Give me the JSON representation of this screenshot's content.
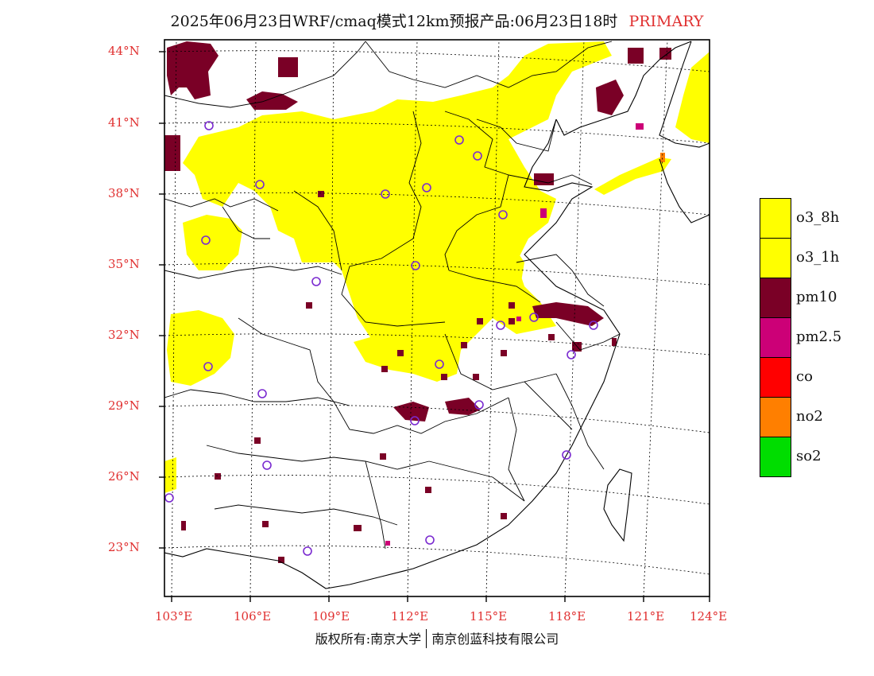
{
  "title": {
    "main": "2025年06月23日WRF/cmaq模式12km预报产品:06月23日18时",
    "tag": "PRIMARY",
    "tag_color": "#e03030"
  },
  "axes": {
    "lat_labels": [
      "44°N",
      "41°N",
      "38°N",
      "35°N",
      "32°N",
      "29°N",
      "26°N",
      "23°N"
    ],
    "lon_labels": [
      "103°E",
      "106°E",
      "109°E",
      "112°E",
      "115°E",
      "118°E",
      "121°E",
      "124°E"
    ],
    "label_color": "#e03030"
  },
  "legend": [
    {
      "label": "o3_8h",
      "color": "#ffff00"
    },
    {
      "label": "o3_1h",
      "color": "#ffff00"
    },
    {
      "label": "pm10",
      "color": "#7a0026"
    },
    {
      "label": "pm2.5",
      "color": "#cc0077"
    },
    {
      "label": "co",
      "color": "#ff0000"
    },
    {
      "label": "no2",
      "color": "#ff7f00"
    },
    {
      "label": "so2",
      "color": "#00dd00"
    }
  ],
  "copyright": {
    "left": "版权所有:南京大学",
    "right": "南京创蓝科技有限公司"
  }
}
